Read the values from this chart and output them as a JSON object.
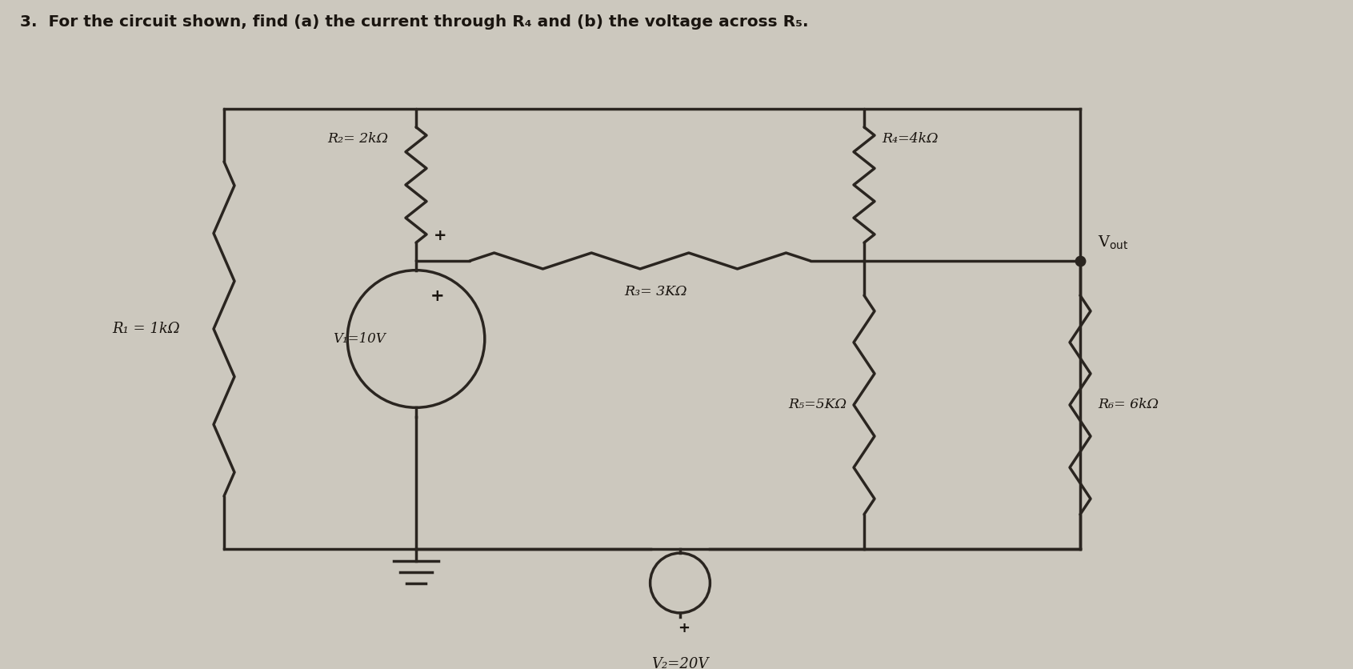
{
  "title": "3.  For the circuit shown, find (a) the current through R₄ and (b) the voltage across R₅.",
  "background_color": "#ccc8be",
  "line_color": "#2a2520",
  "text_color": "#1a1510",
  "lw": 2.5,
  "labels": {
    "R1": "R₁ = 1kΩ",
    "R2": "R₂= 2kΩ",
    "R3": "R₃= 3KΩ",
    "R4": "R₄=4kΩ",
    "R5": "R₅=5KΩ",
    "R6": "R₆= 6kΩ",
    "V1": "V₁=10V",
    "V2": "V₂=20V",
    "Vout": "V₀ᵤₜ"
  },
  "nodes": {
    "xOL": 2.8,
    "xIL": 5.2,
    "xIR": 10.8,
    "xOR": 13.5,
    "yTop": 7.0,
    "yR3": 5.1,
    "yBot": 1.5,
    "yGnd": 1.5
  }
}
